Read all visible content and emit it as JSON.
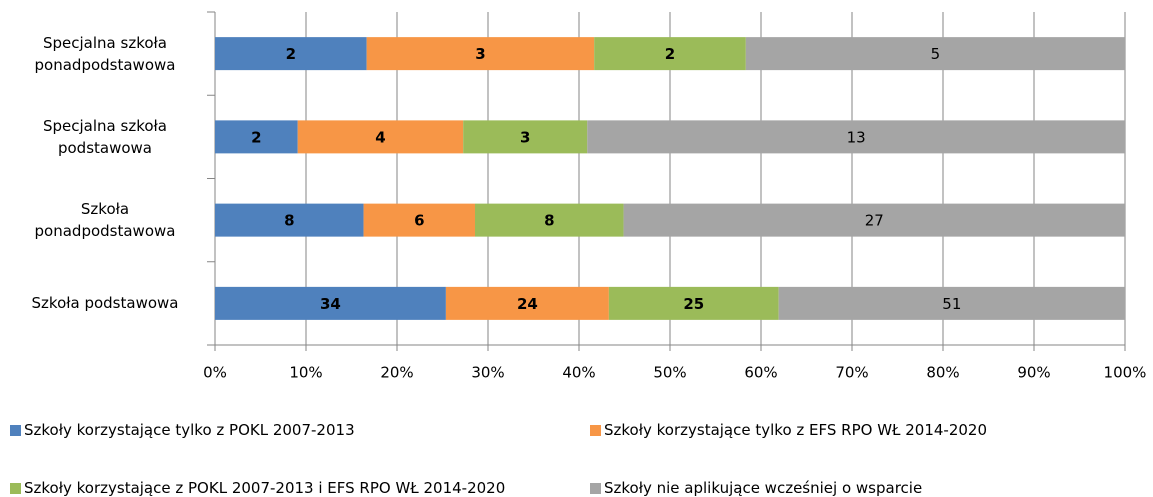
{
  "chart_data": {
    "type": "bar",
    "orientation": "horizontal",
    "stacking": "percent",
    "categories": [
      "Specjalna szkoła ponadpodstawowa",
      "Specjalna szkoła podstawowa",
      "Szkoła ponadpodstawowa",
      "Szkoła podstawowa"
    ],
    "series": [
      {
        "name": "Szkoły korzystające tylko z POKL 2007-2013",
        "color": "#4f81bd",
        "values": [
          2,
          2,
          8,
          34
        ]
      },
      {
        "name": "Szkoły korzystające tylko z EFS RPO WŁ 2014-2020",
        "color": "#f79646",
        "values": [
          3,
          4,
          6,
          24
        ]
      },
      {
        "name": "Szkoły korzystające z POKL 2007-2013 i EFS RPO WŁ 2014-2020",
        "color": "#9bbb59",
        "values": [
          2,
          3,
          8,
          25
        ]
      },
      {
        "name": "Szkoły nie aplikujące wcześniej o wsparcie",
        "color": "#a5a5a5",
        "values": [
          5,
          13,
          27,
          51
        ]
      }
    ],
    "xlim": [
      0,
      100
    ],
    "xticks": [
      {
        "value": 0,
        "label": "0%"
      },
      {
        "value": 10,
        "label": "10%"
      },
      {
        "value": 20,
        "label": "20%"
      },
      {
        "value": 30,
        "label": "30%"
      },
      {
        "value": 40,
        "label": "40%"
      },
      {
        "value": 50,
        "label": "50%"
      },
      {
        "value": 60,
        "label": "60%"
      },
      {
        "value": 70,
        "label": "70%"
      },
      {
        "value": 80,
        "label": "80%"
      },
      {
        "value": 90,
        "label": "90%"
      },
      {
        "value": 100,
        "label": "100%"
      }
    ],
    "grid": true,
    "legend": "bottom"
  }
}
